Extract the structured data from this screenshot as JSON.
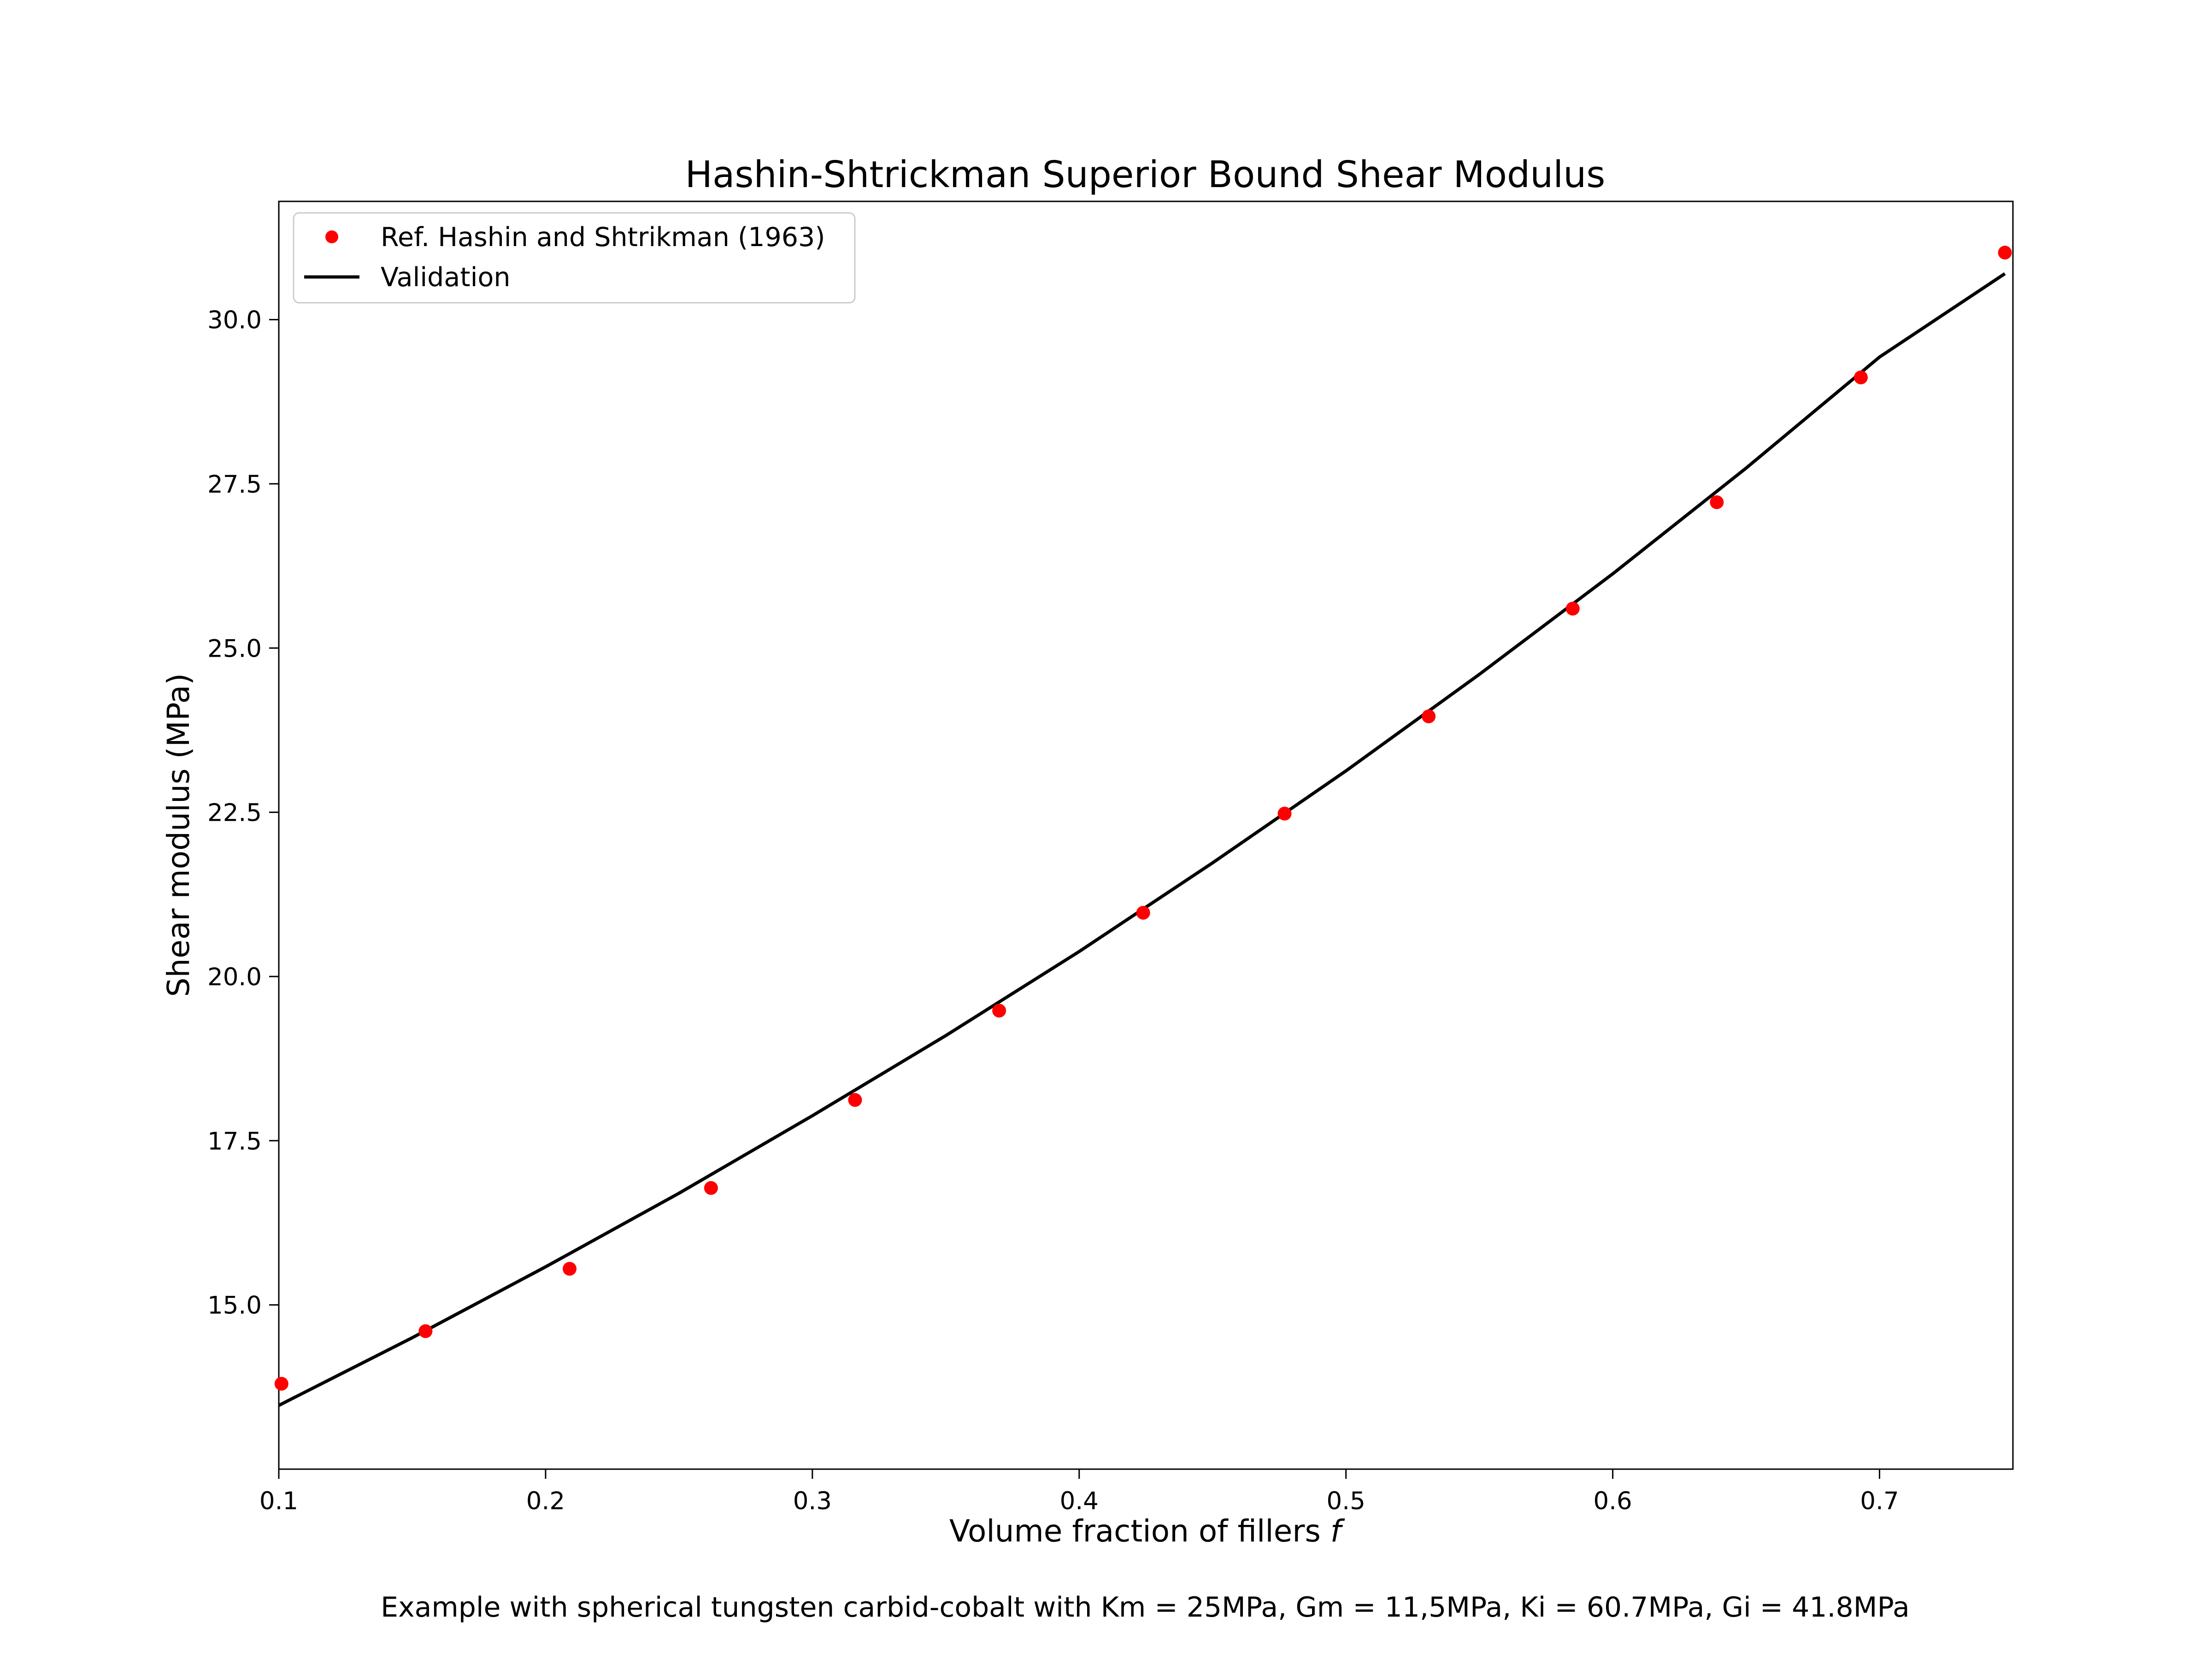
{
  "chart_data": {
    "type": "line",
    "title": "Hashin-Shtrickman Superior Bound Shear Modulus",
    "xlabel": "Volume fraction of fillers ",
    "xlabel_italic": "f",
    "ylabel": "Shear modulus (MPa)",
    "caption": "Example with spherical tungsten carbid-cobalt with Km = 25MPa, Gm = 11,5MPa, Ki = 60.7MPa, Gi = 41.8MPa",
    "xlim": [
      0.1,
      0.75
    ],
    "ylim": [
      12.5,
      31.8
    ],
    "x_ticks": [
      0.1,
      0.2,
      0.3,
      0.4,
      0.5,
      0.6,
      0.7
    ],
    "x_tick_labels": [
      "0.1",
      "0.2",
      "0.3",
      "0.4",
      "0.5",
      "0.6",
      "0.7"
    ],
    "y_ticks": [
      15.0,
      17.5,
      20.0,
      22.5,
      25.0,
      27.5,
      30.0
    ],
    "y_tick_labels": [
      "15.0",
      "17.5",
      "20.0",
      "22.5",
      "25.0",
      "27.5",
      "30.0"
    ],
    "grid": false,
    "legend_position": "top-left",
    "series": [
      {
        "name": "Ref. Hashin and Shtrikman (1963)",
        "kind": "scatter",
        "color": "#ff0000",
        "x": [
          0.101,
          0.155,
          0.209,
          0.262,
          0.316,
          0.37,
          0.424,
          0.477,
          0.531,
          0.585,
          0.639,
          0.693,
          0.747
        ],
        "y": [
          13.8,
          14.6,
          15.55,
          16.78,
          18.12,
          19.48,
          20.97,
          22.48,
          23.96,
          25.6,
          27.22,
          29.12,
          31.02
        ]
      },
      {
        "name": "Validation",
        "kind": "line",
        "color": "#000000",
        "x": [
          0.1,
          0.15,
          0.2,
          0.25,
          0.3,
          0.35,
          0.4,
          0.45,
          0.5,
          0.55,
          0.6,
          0.65,
          0.7,
          0.747
        ],
        "y": [
          13.47,
          14.5,
          15.58,
          16.7,
          17.88,
          19.1,
          20.38,
          21.73,
          23.13,
          24.6,
          26.13,
          27.74,
          29.43,
          30.7
        ]
      }
    ]
  }
}
